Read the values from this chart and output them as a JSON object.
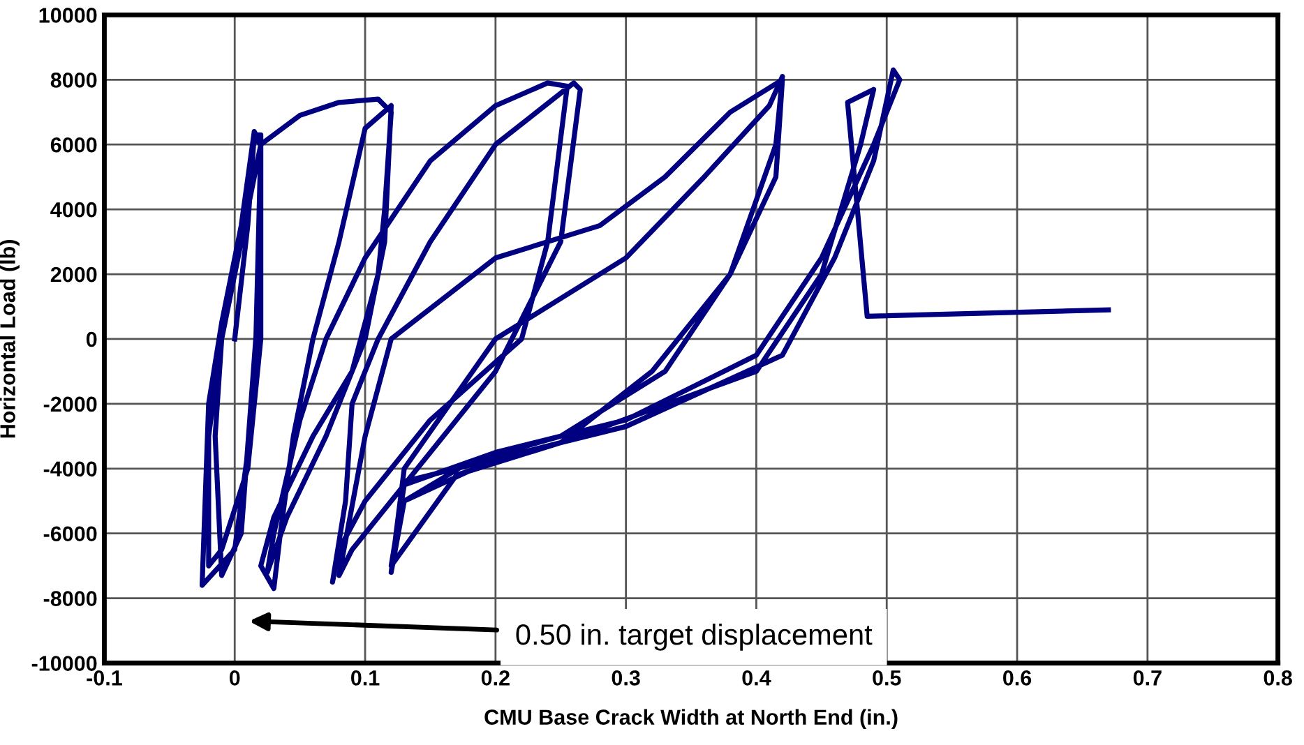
{
  "chart_data": {
    "type": "line",
    "xlabel": "CMU Base Crack Width at North End (in.)",
    "ylabel": "Horizontal Load (lb)",
    "xlim": [
      -0.1,
      0.8
    ],
    "xticks": [
      -0.1,
      0,
      0.1,
      0.2,
      0.3,
      0.4,
      0.5,
      0.6,
      0.7,
      0.8
    ],
    "ylim": [
      -10000,
      10000
    ],
    "yticks": [
      -10000,
      -8000,
      -6000,
      -4000,
      -2000,
      0,
      2000,
      4000,
      6000,
      8000,
      10000
    ],
    "grid": true,
    "marker": "none",
    "line_style": "solid",
    "annotations": [
      "0.50 in. target displacement"
    ],
    "series": [
      {
        "color": "#000080",
        "x": [
          0,
          0.01,
          0.015,
          0.02,
          0.02,
          0.01,
          -0.01,
          -0.02,
          -0.02,
          -0.01,
          0,
          0.015,
          0.02,
          0.015,
          0,
          -0.025,
          -0.02,
          -0.01,
          0.005,
          0.015,
          0.02,
          0.018,
          0.005,
          -0.01,
          -0.015,
          -0.01,
          0.02,
          0.05,
          0.08,
          0.11,
          0.12,
          0.115,
          0.11,
          0.09,
          0.06,
          0.03,
          0.02,
          0.03,
          0.035,
          0.045,
          0.06,
          0.08,
          0.1,
          0.12,
          0.115,
          0.1,
          0.07,
          0.04,
          0.025,
          0.03,
          0.05,
          0.07,
          0.1,
          0.15,
          0.2,
          0.24,
          0.255,
          0.24,
          0.22,
          0.15,
          0.1,
          0.08,
          0.075,
          0.085,
          0.09,
          0.11,
          0.15,
          0.2,
          0.26,
          0.265,
          0.25,
          0.2,
          0.14,
          0.09,
          0.08,
          0.1,
          0.12,
          0.2,
          0.28,
          0.33,
          0.38,
          0.42,
          0.415,
          0.38,
          0.33,
          0.25,
          0.18,
          0.13,
          0.12,
          0.13,
          0.2,
          0.3,
          0.36,
          0.41,
          0.42,
          0.415,
          0.38,
          0.32,
          0.25,
          0.17,
          0.12,
          0.13,
          0.2,
          0.3,
          0.4,
          0.45,
          0.49,
          0.51,
          0.505,
          0.49,
          0.46,
          0.42,
          0.3,
          0.2,
          0.13,
          0.12,
          0.13,
          0.25,
          0.4,
          0.45,
          0.48,
          0.49,
          0.47,
          0.485,
          0.67
        ],
        "values": [
          0,
          3500,
          6300,
          6300,
          0,
          -4000,
          -6500,
          -7000,
          -3000,
          0,
          2000,
          6200,
          6000,
          -2000,
          -6500,
          -7600,
          -2000,
          500,
          3500,
          6400,
          6000,
          1000,
          -6000,
          -7300,
          -3000,
          0,
          6000,
          6900,
          7300,
          7400,
          7000,
          4000,
          2000,
          -1000,
          -3000,
          -5500,
          -7000,
          -7700,
          -6000,
          -3000,
          0,
          3000,
          6500,
          7200,
          3000,
          0,
          -3000,
          -5500,
          -7200,
          -6000,
          -2500,
          0,
          2500,
          5500,
          7200,
          7900,
          7800,
          3000,
          0,
          -2500,
          -5000,
          -6500,
          -7500,
          -5000,
          -2000,
          0,
          3000,
          6000,
          7900,
          7700,
          3000,
          -1000,
          -4000,
          -6500,
          -7300,
          -3000,
          0,
          2500,
          3500,
          5000,
          7000,
          8000,
          5000,
          2000,
          -1000,
          -3000,
          -3800,
          -5000,
          -7200,
          -4000,
          0,
          2500,
          5000,
          7200,
          8100,
          6000,
          2000,
          -1000,
          -3200,
          -4200,
          -7000,
          -4500,
          -3500,
          -2500,
          -500,
          2500,
          6000,
          8000,
          8300,
          5500,
          2500,
          -500,
          -2700,
          -3700,
          -5000,
          -7200,
          -4400,
          -3200,
          -1000,
          2000,
          6000,
          7700,
          7300,
          700,
          900
        ]
      }
    ]
  }
}
